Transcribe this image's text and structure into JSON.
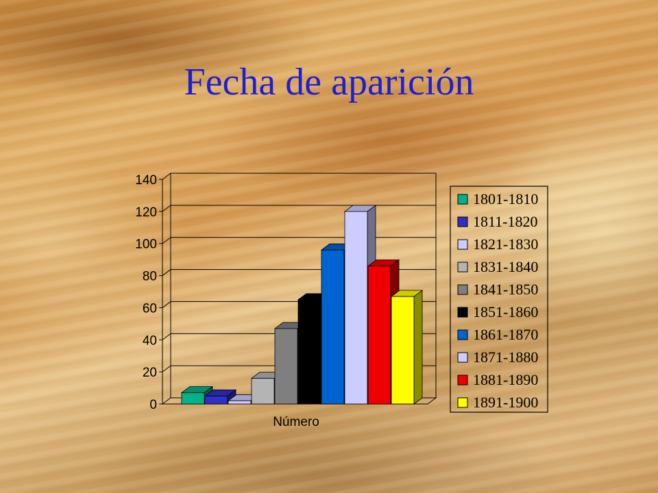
{
  "slide": {
    "title": "Fecha de aparición"
  },
  "chart_data": {
    "type": "bar",
    "title": "",
    "xlabel": "Número",
    "ylabel": "",
    "ylim": [
      0,
      140
    ],
    "yticks": [
      0,
      20,
      40,
      60,
      80,
      100,
      120,
      140
    ],
    "categories": [
      "Número"
    ],
    "grid": true,
    "legend_position": "right",
    "series": [
      {
        "name": "1801-1810",
        "values": [
          7
        ],
        "color": "#00b38a"
      },
      {
        "name": "1811-1820",
        "values": [
          5
        ],
        "color": "#2f2fc8"
      },
      {
        "name": "1821-1830",
        "values": [
          2
        ],
        "color": "#ccccff"
      },
      {
        "name": "1831-1840",
        "values": [
          16
        ],
        "color": "#b4b4b4"
      },
      {
        "name": "1841-1850",
        "values": [
          47
        ],
        "color": "#7f7f7f"
      },
      {
        "name": "1851-1860",
        "values": [
          65
        ],
        "color": "#000000"
      },
      {
        "name": "1861-1870",
        "values": [
          96
        ],
        "color": "#0063d2"
      },
      {
        "name": "1871-1880",
        "values": [
          120
        ],
        "color": "#ccccff"
      },
      {
        "name": "1881-1890",
        "values": [
          86
        ],
        "color": "#ee0000"
      },
      {
        "name": "1891-1900",
        "values": [
          67
        ],
        "color": "#ffff00"
      }
    ]
  }
}
